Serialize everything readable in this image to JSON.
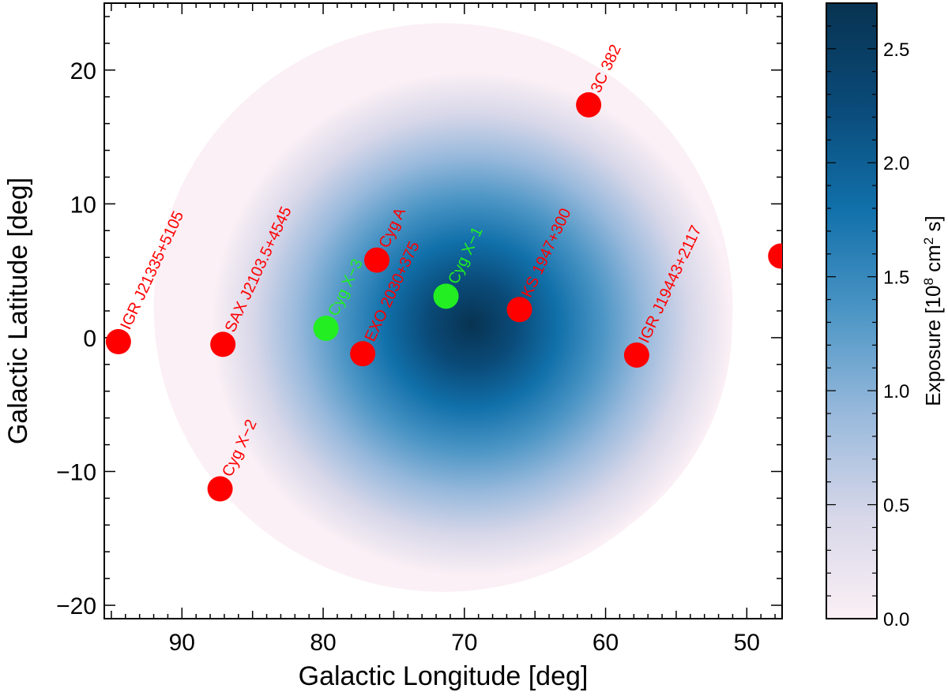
{
  "chart_data": {
    "type": "scatter",
    "xlabel": "Galactic Longitude [deg]",
    "ylabel": "Galactic Latitude [deg]",
    "xlim": [
      95.5,
      47.5
    ],
    "ylim": [
      -21,
      25
    ],
    "x_axis_reversed": true,
    "x_ticks": [
      90,
      80,
      70,
      60,
      50
    ],
    "y_ticks": [
      -20,
      -10,
      0,
      10,
      20
    ],
    "x_tick_labels": [
      "90",
      "80",
      "70",
      "60",
      "50"
    ],
    "y_tick_labels": [
      "−20",
      "−10",
      "0",
      "10",
      "20"
    ],
    "exposure_map": {
      "center": [
        69.5,
        1.0
      ],
      "extent_lon": [
        51,
        92
      ],
      "extent_lat": [
        -19,
        23.5
      ],
      "peak": 2.7
    },
    "colorbar": {
      "label_prefix": "Exposure [10",
      "label_exp1": "8",
      "label_mid": " cm",
      "label_exp2": "2",
      "label_suffix": " s]",
      "range": [
        0,
        2.7
      ],
      "ticks": [
        0.0,
        0.5,
        1.0,
        1.5,
        2.0,
        2.5
      ],
      "tick_labels": [
        "0.0",
        "0.5",
        "1.0",
        "1.5",
        "2.0",
        "2.5"
      ],
      "colors": [
        "#fbf0f5",
        "#d7d7e9",
        "#98b9dc",
        "#4b95c5",
        "#1170aa",
        "#0a4a78",
        "#083351"
      ]
    },
    "colors": {
      "red": "#ff0000",
      "green": "#22ee22"
    },
    "points": [
      {
        "name": "IGR J21335+5105",
        "lon": 94.5,
        "lat": -0.3,
        "group": "red"
      },
      {
        "name": "SAX J2103.5+4545",
        "lon": 87.1,
        "lat": -0.5,
        "group": "red"
      },
      {
        "name": "Cyg X−2",
        "lon": 87.3,
        "lat": -11.3,
        "group": "red"
      },
      {
        "name": "Cyg X−3",
        "lon": 79.8,
        "lat": 0.7,
        "group": "green"
      },
      {
        "name": "EXO 2030+375",
        "lon": 77.2,
        "lat": -1.2,
        "group": "red"
      },
      {
        "name": "Cyg A",
        "lon": 76.2,
        "lat": 5.8,
        "group": "red"
      },
      {
        "name": "Cyg X−1",
        "lon": 71.3,
        "lat": 3.1,
        "group": "green"
      },
      {
        "name": "KS 1947+300",
        "lon": 66.1,
        "lat": 2.1,
        "group": "red"
      },
      {
        "name": "IGR J19443+2117",
        "lon": 57.8,
        "lat": -1.3,
        "group": "red"
      },
      {
        "name": "3C 382",
        "lon": 61.2,
        "lat": 17.4,
        "group": "red"
      },
      {
        "name": "",
        "lon": 47.6,
        "lat": 6.1,
        "group": "red"
      }
    ]
  }
}
